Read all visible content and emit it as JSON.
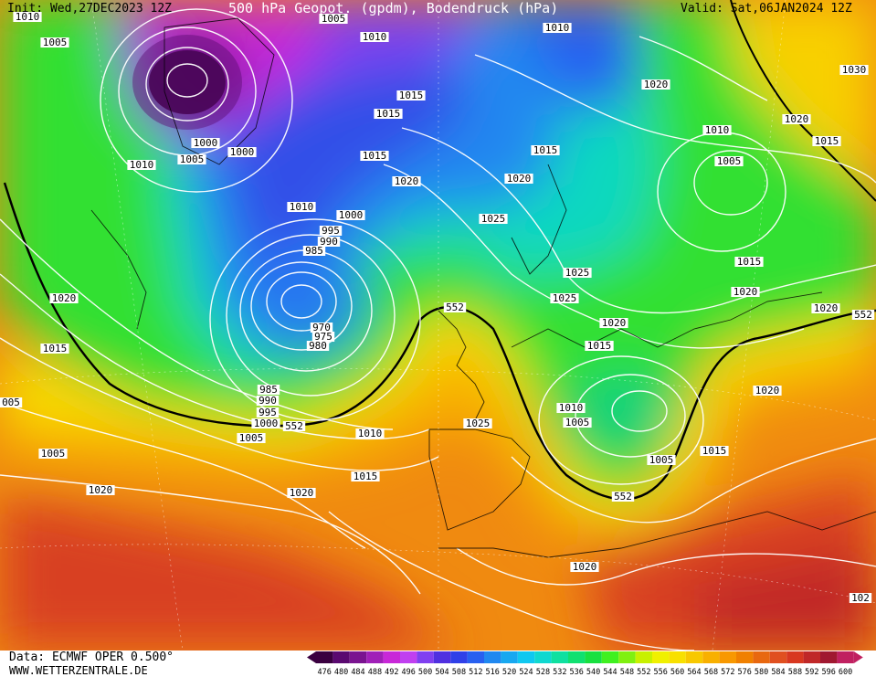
{
  "header": {
    "init": "Init: Wed,27DEC2023 12Z",
    "title": "500 hPa Geopot. (gpdm), Bodendruck (hPa)",
    "valid": "Valid: Sat,06JAN2024 12Z"
  },
  "footer": {
    "data_source": "Data: ECMWF OPER 0.500°",
    "website": "WWW.WETTERZENTRALE.DE"
  },
  "legend": {
    "values": [
      "476",
      "480",
      "484",
      "488",
      "492",
      "496",
      "500",
      "504",
      "508",
      "512",
      "516",
      "520",
      "524",
      "528",
      "532",
      "536",
      "540",
      "544",
      "548",
      "552",
      "556",
      "560",
      "564",
      "568",
      "572",
      "576",
      "580",
      "584",
      "588",
      "592",
      "596",
      "600"
    ],
    "colors": [
      "#3a0040",
      "#5a0a70",
      "#7a1490",
      "#a020b8",
      "#c828d8",
      "#c040f0",
      "#8040f0",
      "#5030e0",
      "#3040e8",
      "#2860f0",
      "#2088f0",
      "#18a8f0",
      "#10c8f0",
      "#10d8d0",
      "#10e0a0",
      "#10e070",
      "#18e040",
      "#40f020",
      "#80f010",
      "#c8f000",
      "#f0f000",
      "#f8e000",
      "#f8c800",
      "#f8b000",
      "#f89800",
      "#f08000",
      "#e86810",
      "#e05020",
      "#d83820",
      "#c02828",
      "#a01830",
      "#c02060"
    ]
  },
  "isobar_labels": [
    {
      "t": "1010"
    },
    {
      "t": "1005"
    },
    {
      "t": "1005"
    },
    {
      "t": "1010"
    },
    {
      "t": "1015"
    },
    {
      "t": "1010"
    },
    {
      "t": "1000"
    },
    {
      "t": "1005"
    },
    {
      "t": "1000"
    },
    {
      "t": "1010"
    },
    {
      "t": "1015"
    },
    {
      "t": "1015"
    },
    {
      "t": "1015"
    },
    {
      "t": "1020"
    },
    {
      "t": "1020"
    },
    {
      "t": "1010"
    },
    {
      "t": "1000"
    },
    {
      "t": "995"
    },
    {
      "t": "990"
    },
    {
      "t": "985"
    },
    {
      "t": "1025"
    },
    {
      "t": "1020"
    },
    {
      "t": "1030"
    },
    {
      "t": "1020"
    },
    {
      "t": "1010"
    },
    {
      "t": "1015"
    },
    {
      "t": "1005"
    },
    {
      "t": "1015"
    },
    {
      "t": "1020"
    },
    {
      "t": "1025"
    },
    {
      "t": "1025"
    },
    {
      "t": "1020"
    },
    {
      "t": "1015"
    },
    {
      "t": "1020"
    },
    {
      "t": "1015"
    },
    {
      "t": "1005"
    },
    {
      "t": "970"
    },
    {
      "t": "975"
    },
    {
      "t": "980"
    },
    {
      "t": "985"
    },
    {
      "t": "990"
    },
    {
      "t": "995"
    },
    {
      "t": "1000"
    },
    {
      "t": "1005"
    },
    {
      "t": "1010"
    },
    {
      "t": "1015"
    },
    {
      "t": "1020"
    },
    {
      "t": "1020"
    },
    {
      "t": "1025"
    },
    {
      "t": "1010"
    },
    {
      "t": "1005"
    },
    {
      "t": "1005"
    },
    {
      "t": "1015"
    },
    {
      "t": "1020"
    },
    {
      "t": "1020"
    },
    {
      "t": "1020"
    },
    {
      "t": "1025"
    },
    {
      "t": "1015"
    },
    {
      "t": "005"
    },
    {
      "t": "102"
    }
  ],
  "contour_labels": [
    {
      "t": "552"
    },
    {
      "t": "552"
    },
    {
      "t": "552"
    },
    {
      "t": "552"
    }
  ]
}
